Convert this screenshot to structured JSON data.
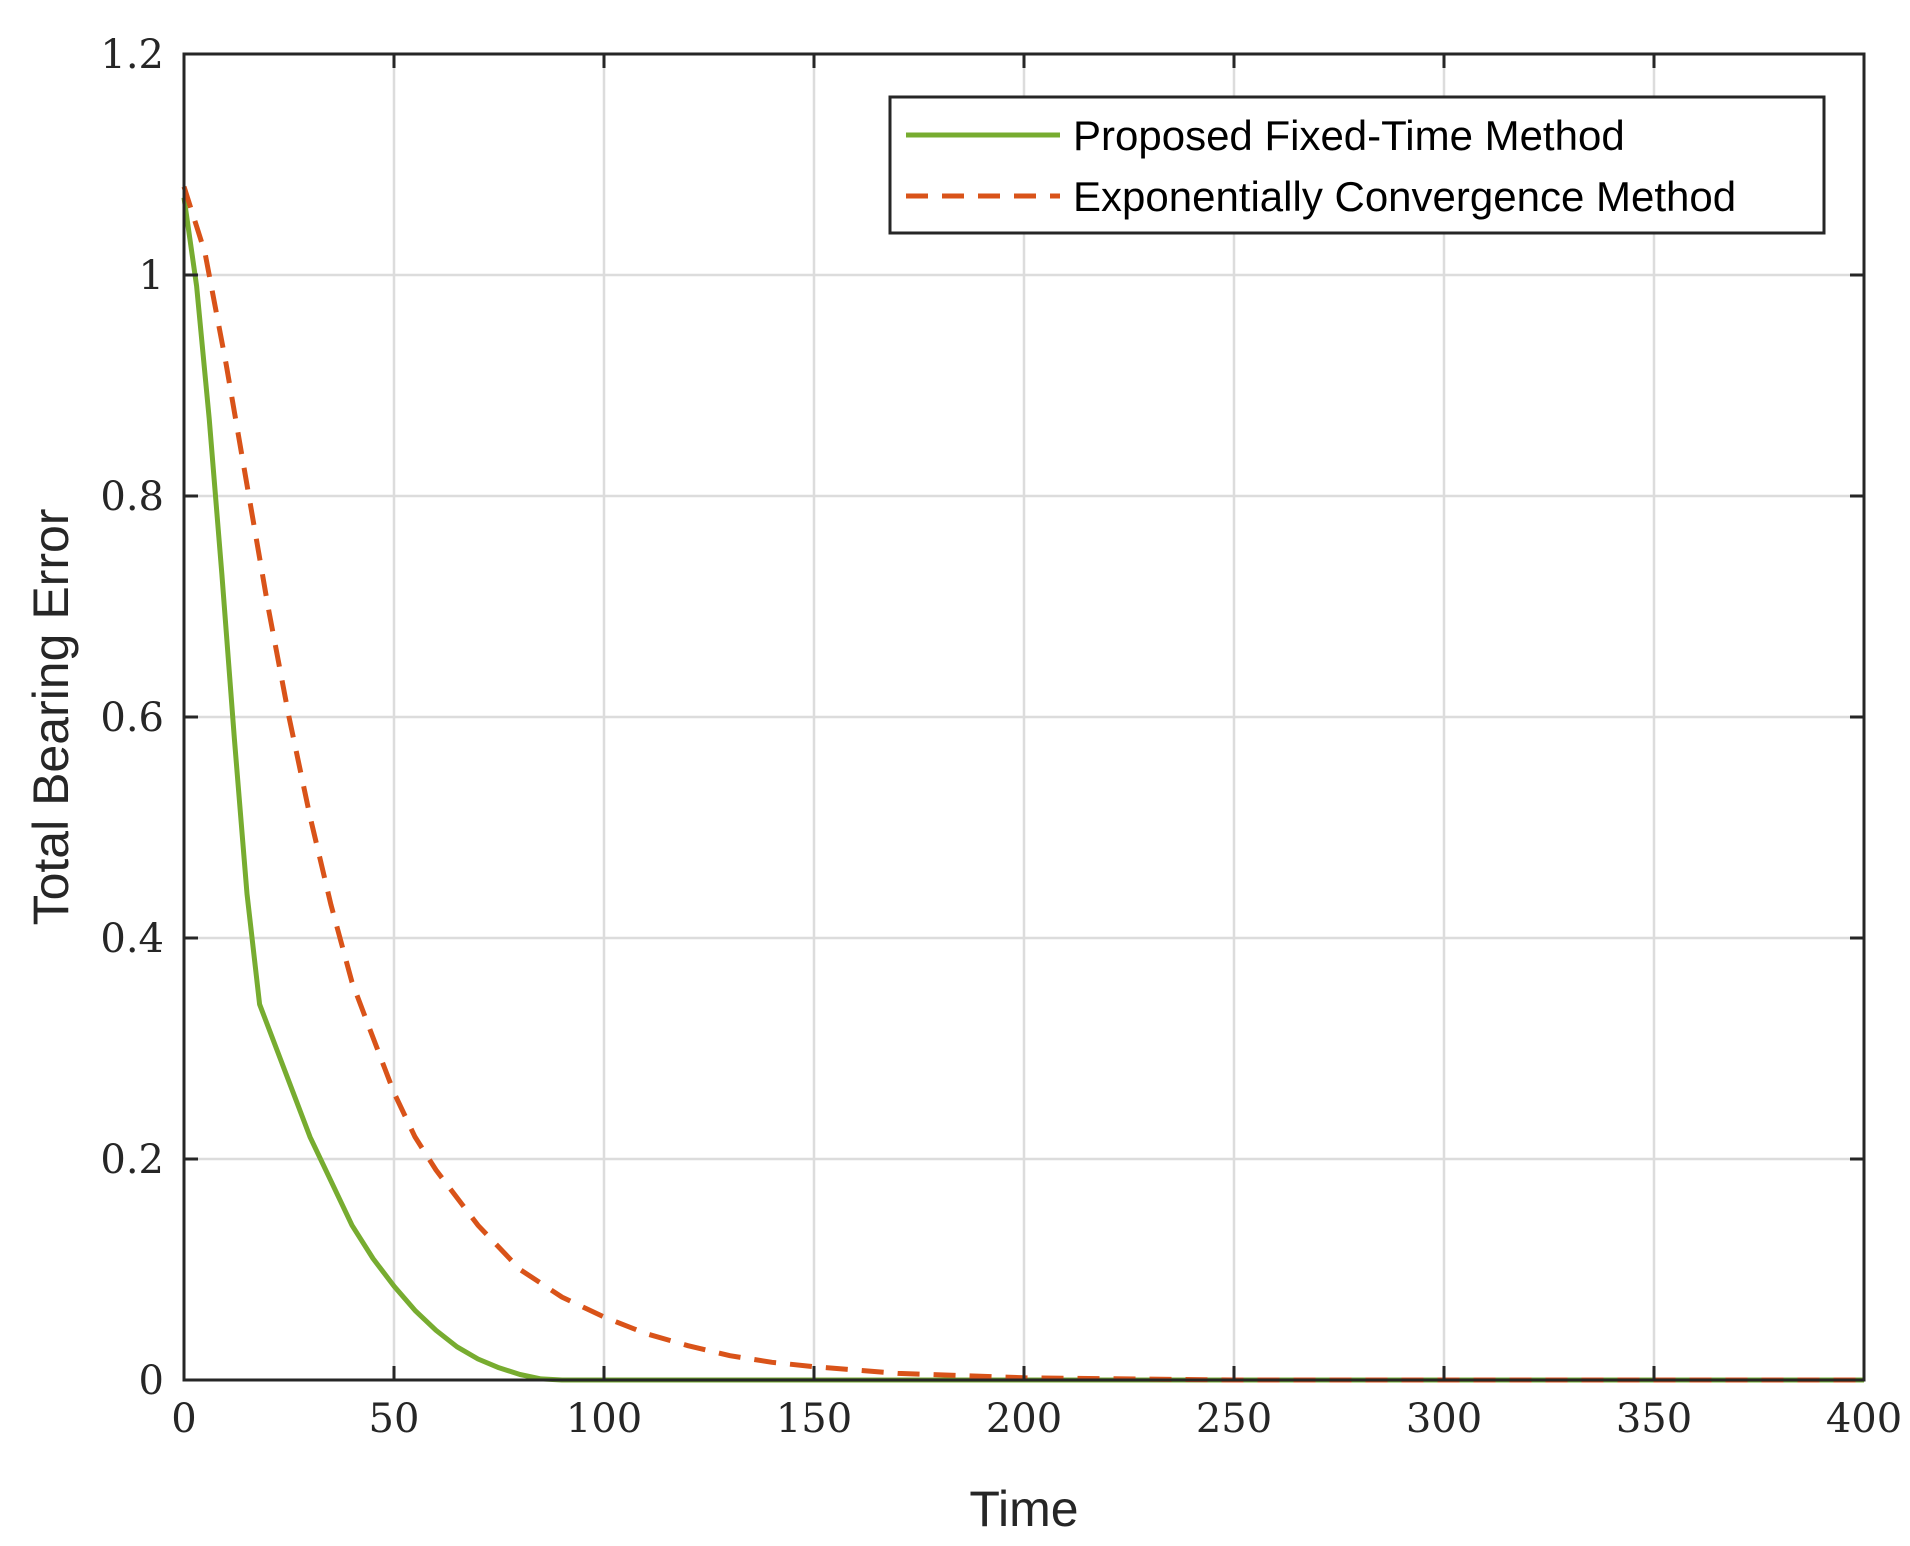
{
  "chart_data": {
    "type": "line",
    "xlabel": "Time",
    "ylabel": "Total Bearing Error",
    "xlim": [
      0,
      400
    ],
    "ylim": [
      0,
      1.2
    ],
    "xticks": [
      0,
      50,
      100,
      150,
      200,
      250,
      300,
      350,
      400
    ],
    "yticks": [
      0,
      0.2,
      0.4,
      0.6,
      0.8,
      1,
      1.2
    ],
    "xtick_labels": [
      "0",
      "50",
      "100",
      "150",
      "200",
      "250",
      "300",
      "350",
      "400"
    ],
    "ytick_labels": [
      "0",
      "0.2",
      "0.4",
      "0.6",
      "0.8",
      "1",
      "1.2"
    ],
    "grid": true,
    "legend_position": "top-right",
    "series": [
      {
        "name": "Proposed Fixed-Time Method",
        "color": "#77AC30",
        "style": "solid",
        "x": [
          0,
          3,
          6,
          9,
          12,
          15,
          18,
          22,
          26,
          30,
          35,
          40,
          45,
          50,
          55,
          60,
          65,
          70,
          75,
          80,
          85,
          90,
          100,
          150,
          200,
          250,
          300,
          350,
          400
        ],
        "y": [
          1.07,
          0.99,
          0.87,
          0.73,
          0.58,
          0.44,
          0.34,
          0.3,
          0.26,
          0.22,
          0.18,
          0.14,
          0.11,
          0.085,
          0.063,
          0.045,
          0.03,
          0.019,
          0.011,
          0.005,
          0.001,
          0.0,
          0.0,
          0.0,
          0.0,
          0.0,
          0.0,
          0.0,
          0.0
        ]
      },
      {
        "name": "Exponentially Convergence Method",
        "color": "#D95319",
        "style": "dashed",
        "x": [
          0,
          5,
          10,
          15,
          20,
          25,
          30,
          35,
          40,
          45,
          50,
          55,
          60,
          70,
          80,
          90,
          100,
          110,
          120,
          130,
          140,
          150,
          170,
          200,
          250,
          300,
          350,
          400
        ],
        "y": [
          1.08,
          1.02,
          0.92,
          0.81,
          0.7,
          0.6,
          0.51,
          0.43,
          0.36,
          0.31,
          0.26,
          0.22,
          0.19,
          0.14,
          0.1,
          0.075,
          0.057,
          0.042,
          0.031,
          0.022,
          0.016,
          0.012,
          0.006,
          0.002,
          0.0,
          0.0,
          0.0,
          0.0
        ]
      }
    ]
  }
}
